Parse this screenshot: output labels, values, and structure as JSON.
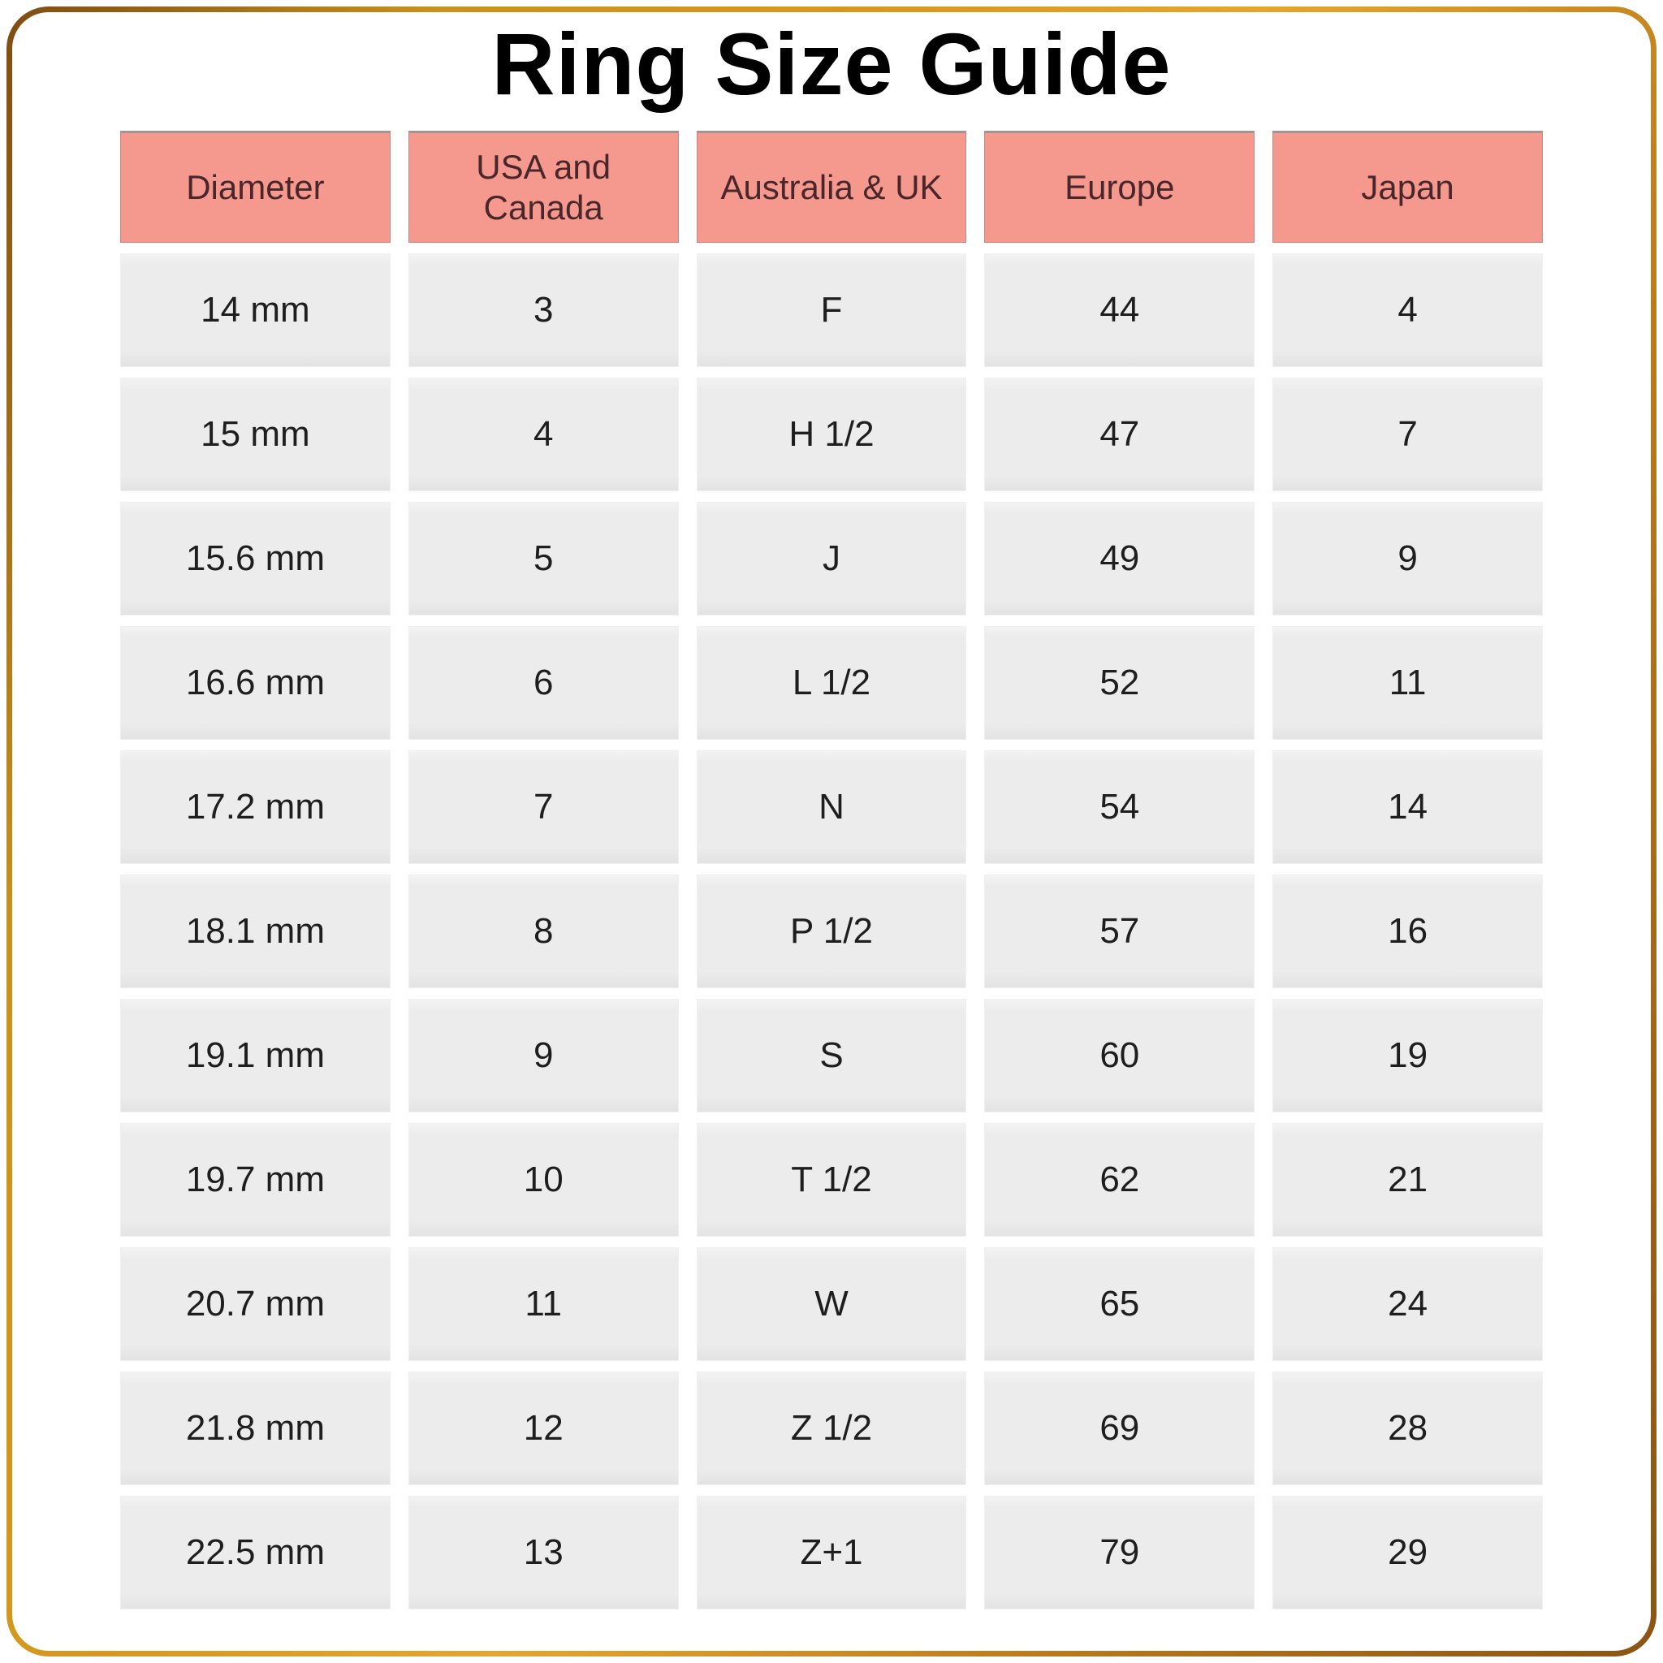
{
  "title": "Ring Size Guide",
  "colors": {
    "frame_gold_light": "#D79A20",
    "frame_gold_dark": "#8A5413",
    "header_pink": "#F5998F",
    "header_text": "#49262A",
    "cell_gray": "#ECECEC",
    "cell_text": "#1E1E1E",
    "background": "#FFFFFF"
  },
  "chart_data": {
    "type": "table",
    "title": "Ring Size Guide",
    "columns": [
      "Diameter",
      "USA and Canada",
      "Australia & UK",
      "Europe",
      "Japan"
    ],
    "rows": [
      [
        "14 mm",
        "3",
        "F",
        "44",
        "4"
      ],
      [
        "15 mm",
        "4",
        "H 1/2",
        "47",
        "7"
      ],
      [
        "15.6 mm",
        "5",
        "J",
        "49",
        "9"
      ],
      [
        "16.6 mm",
        "6",
        "L 1/2",
        "52",
        "11"
      ],
      [
        "17.2 mm",
        "7",
        "N",
        "54",
        "14"
      ],
      [
        "18.1 mm",
        "8",
        "P 1/2",
        "57",
        "16"
      ],
      [
        "19.1 mm",
        "9",
        "S",
        "60",
        "19"
      ],
      [
        "19.7 mm",
        "10",
        "T 1/2",
        "62",
        "21"
      ],
      [
        "20.7 mm",
        "11",
        "W",
        "65",
        "24"
      ],
      [
        "21.8 mm",
        "12",
        "Z 1/2",
        "69",
        "28"
      ],
      [
        "22.5 mm",
        "13",
        "Z+1",
        "79",
        "29"
      ]
    ]
  }
}
